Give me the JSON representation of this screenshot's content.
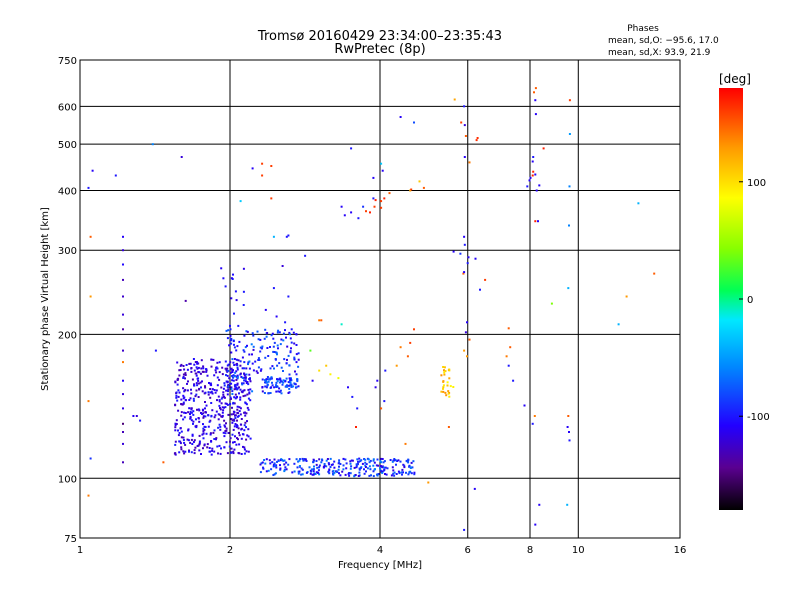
{
  "chart_data": {
    "type": "scatter",
    "title": "Tromsø 20160429 23:34:00–23:35:43",
    "subtitle": "RwPretec (8p)",
    "phases_title": "Phases",
    "phases_stats": [
      "mean, sd,O: −95.6, 17.0",
      "mean, sd,X:  93.9, 21.9"
    ],
    "xlabel": "Frequency [MHz]",
    "ylabel": "Stationary phase Virtual Height [km]",
    "x_scale": "log2",
    "y_scale": "log",
    "xlim": [
      1,
      16
    ],
    "ylim": [
      75,
      750
    ],
    "x_ticks": [
      1,
      2,
      4,
      6,
      8,
      10,
      16
    ],
    "y_ticks": [
      75,
      100,
      200,
      300,
      400,
      500,
      600,
      750
    ],
    "grid": true,
    "colorbar": {
      "label": "[deg]",
      "range": [
        -180,
        180
      ],
      "ticks": [
        100,
        0,
        -100
      ]
    },
    "points": [
      [
        1.04,
        405,
        -100
      ],
      [
        1.06,
        440,
        -110
      ],
      [
        1.05,
        320,
        150
      ],
      [
        1.05,
        240,
        130
      ],
      [
        1.04,
        145,
        140
      ],
      [
        1.05,
        110,
        -90
      ],
      [
        1.04,
        92,
        140
      ],
      [
        1.18,
        430,
        -100
      ],
      [
        1.22,
        320,
        -110
      ],
      [
        1.22,
        300,
        -120
      ],
      [
        1.22,
        280,
        -105
      ],
      [
        1.22,
        260,
        -130
      ],
      [
        1.22,
        240,
        -125
      ],
      [
        1.22,
        220,
        -120
      ],
      [
        1.22,
        205,
        -135
      ],
      [
        1.22,
        185,
        -125
      ],
      [
        1.22,
        175,
        140
      ],
      [
        1.22,
        160,
        -110
      ],
      [
        1.22,
        150,
        -120
      ],
      [
        1.22,
        140,
        -115
      ],
      [
        1.22,
        130,
        -150
      ],
      [
        1.22,
        125,
        -130
      ],
      [
        1.22,
        118,
        -120
      ],
      [
        1.22,
        108,
        -130
      ],
      [
        1.28,
        135,
        -110
      ],
      [
        1.3,
        135,
        -120
      ],
      [
        1.32,
        132,
        -100
      ],
      [
        1.4,
        500,
        -60
      ],
      [
        1.42,
        185,
        -100
      ],
      [
        1.47,
        108,
        150
      ],
      [
        1.6,
        470,
        -120
      ],
      [
        1.63,
        235,
        -135
      ],
      [
        1.7,
        168,
        -115
      ],
      [
        1.92,
        275,
        -110
      ],
      [
        1.94,
        262,
        -105
      ],
      [
        1.96,
        252,
        -100
      ],
      [
        2.1,
        380,
        -30
      ],
      [
        2.22,
        445,
        -110
      ],
      [
        2.32,
        455,
        160
      ],
      [
        2.42,
        450,
        160
      ],
      [
        2.32,
        430,
        160
      ],
      [
        2.42,
        385,
        160
      ],
      [
        2.45,
        320,
        -40
      ],
      [
        2.6,
        320,
        -100
      ],
      [
        2.62,
        322,
        -100
      ],
      [
        2.55,
        278,
        -120
      ],
      [
        2.62,
        240,
        -100
      ],
      [
        2.45,
        250,
        -100
      ],
      [
        2.36,
        225,
        -110
      ],
      [
        2.48,
        218,
        -110
      ],
      [
        2.58,
        212,
        -100
      ],
      [
        2.66,
        205,
        -100
      ],
      [
        2.72,
        200,
        -110
      ],
      [
        2.72,
        190,
        -105
      ],
      [
        2.72,
        175,
        -110
      ],
      [
        2.72,
        165,
        -100
      ],
      [
        2.83,
        292,
        -100
      ],
      [
        3.02,
        214,
        140
      ],
      [
        3.05,
        214,
        150
      ],
      [
        2.9,
        185,
        30
      ],
      [
        3.12,
        172,
        110
      ],
      [
        3.18,
        165,
        90
      ],
      [
        3.02,
        168,
        100
      ],
      [
        2.93,
        160,
        -110
      ],
      [
        3.3,
        162,
        80
      ],
      [
        3.35,
        210,
        -10
      ],
      [
        3.45,
        155,
        -110
      ],
      [
        3.52,
        148,
        -100
      ],
      [
        3.6,
        140,
        -100
      ],
      [
        3.58,
        128,
        170
      ],
      [
        3.5,
        490,
        -100
      ],
      [
        3.35,
        370,
        -110
      ],
      [
        3.4,
        355,
        -110
      ],
      [
        3.5,
        360,
        -110
      ],
      [
        3.62,
        350,
        -100
      ],
      [
        3.7,
        370,
        -90
      ],
      [
        3.75,
        362,
        160
      ],
      [
        3.82,
        360,
        170
      ],
      [
        3.9,
        370,
        160
      ],
      [
        4.02,
        368,
        160
      ],
      [
        3.92,
        382,
        170
      ],
      [
        4.02,
        380,
        160
      ],
      [
        4.08,
        385,
        170
      ],
      [
        3.88,
        385,
        -100
      ],
      [
        4.18,
        395,
        150
      ],
      [
        4.02,
        455,
        -30
      ],
      [
        4.05,
        440,
        -110
      ],
      [
        3.88,
        425,
        -110
      ],
      [
        4.4,
        570,
        -110
      ],
      [
        4.68,
        555,
        -80
      ],
      [
        4.6,
        400,
        120
      ],
      [
        4.62,
        402,
        160
      ],
      [
        4.8,
        418,
        110
      ],
      [
        4.9,
        405,
        150
      ],
      [
        4.4,
        188,
        140
      ],
      [
        4.55,
        180,
        150
      ],
      [
        4.6,
        192,
        160
      ],
      [
        4.68,
        205,
        160
      ],
      [
        4.32,
        172,
        130
      ],
      [
        4.08,
        145,
        -100
      ],
      [
        4.02,
        140,
        150
      ],
      [
        4.1,
        168,
        -100
      ],
      [
        3.95,
        160,
        -110
      ],
      [
        3.92,
        155,
        -115
      ],
      [
        4.5,
        118,
        140
      ],
      [
        5.0,
        98,
        130
      ],
      [
        5.65,
        620,
        125
      ],
      [
        5.82,
        555,
        160
      ],
      [
        5.9,
        600,
        -100
      ],
      [
        5.92,
        548,
        -120
      ],
      [
        5.95,
        520,
        150
      ],
      [
        6.05,
        458,
        140
      ],
      [
        6.25,
        510,
        165
      ],
      [
        6.28,
        515,
        165
      ],
      [
        5.92,
        470,
        -110
      ],
      [
        5.9,
        320,
        -110
      ],
      [
        5.92,
        308,
        -100
      ],
      [
        5.62,
        298,
        -110
      ],
      [
        5.8,
        295,
        -90
      ],
      [
        6.02,
        290,
        -110
      ],
      [
        6.22,
        288,
        -110
      ],
      [
        6.0,
        282,
        -100
      ],
      [
        5.88,
        268,
        150
      ],
      [
        5.9,
        270,
        -110
      ],
      [
        6.35,
        248,
        -100
      ],
      [
        6.5,
        260,
        160
      ],
      [
        5.98,
        212,
        -110
      ],
      [
        5.95,
        202,
        -120
      ],
      [
        6.05,
        195,
        150
      ],
      [
        5.9,
        185,
        130
      ],
      [
        5.98,
        180,
        130
      ],
      [
        6.2,
        95,
        -110
      ],
      [
        5.9,
        78,
        -100
      ],
      [
        5.5,
        128,
        150
      ],
      [
        7.25,
        206,
        150
      ],
      [
        7.3,
        188,
        150
      ],
      [
        7.18,
        180,
        140
      ],
      [
        7.4,
        160,
        -100
      ],
      [
        7.25,
        172,
        -100
      ],
      [
        7.8,
        142,
        -110
      ],
      [
        7.9,
        408,
        -100
      ],
      [
        7.98,
        420,
        -110
      ],
      [
        8.02,
        425,
        -110
      ],
      [
        8.1,
        430,
        170
      ],
      [
        8.12,
        438,
        170
      ],
      [
        8.2,
        432,
        -110
      ],
      [
        8.35,
        410,
        -110
      ],
      [
        8.25,
        400,
        -110
      ],
      [
        8.52,
        490,
        170
      ],
      [
        8.12,
        470,
        -100
      ],
      [
        8.1,
        460,
        -110
      ],
      [
        8.2,
        345,
        170
      ],
      [
        8.3,
        345,
        -110
      ],
      [
        8.22,
        655,
        150
      ],
      [
        8.15,
        642,
        150
      ],
      [
        8.2,
        618,
        -110
      ],
      [
        8.22,
        578,
        -110
      ],
      [
        8.18,
        135,
        140
      ],
      [
        8.1,
        130,
        -100
      ],
      [
        8.2,
        80,
        -110
      ],
      [
        8.35,
        88,
        -110
      ],
      [
        8.85,
        232,
        40
      ],
      [
        9.62,
        618,
        160
      ],
      [
        9.62,
        525,
        -50
      ],
      [
        9.6,
        408,
        -60
      ],
      [
        9.58,
        338,
        -60
      ],
      [
        9.55,
        250,
        -40
      ],
      [
        9.55,
        135,
        150
      ],
      [
        9.52,
        128,
        -110
      ],
      [
        9.58,
        125,
        -110
      ],
      [
        9.6,
        120,
        -100
      ],
      [
        9.5,
        88,
        -40
      ],
      [
        12.05,
        210,
        -40
      ],
      [
        12.5,
        240,
        130
      ],
      [
        13.2,
        376,
        -40
      ],
      [
        14.2,
        268,
        150
      ]
    ],
    "clusters": [
      {
        "f_range": [
          1.55,
          2.2
        ],
        "h_range": [
          112,
          178
        ],
        "phase_range": [
          -135,
          -95
        ],
        "count": 520
      },
      {
        "f_range": [
          1.95,
          2.75
        ],
        "h_range": [
          150,
          205
        ],
        "phase_range": [
          -120,
          -60
        ],
        "count": 180
      },
      {
        "f_range": [
          2.35,
          2.75
        ],
        "h_range": [
          155,
          162
        ],
        "phase_range": [
          -110,
          -60
        ],
        "count": 60
      },
      {
        "f_range": [
          2.3,
          4.7
        ],
        "h_range": [
          101,
          110
        ],
        "phase_range": [
          -120,
          -60
        ],
        "count": 280
      },
      {
        "f_range": [
          5.3,
          5.65
        ],
        "h_range": [
          148,
          172
        ],
        "phase_range": [
          85,
          135
        ],
        "count": 28
      },
      {
        "f_range": [
          2.0,
          2.15
        ],
        "h_range": [
          118,
          275
        ],
        "phase_range": [
          -120,
          -95
        ],
        "count": 40
      }
    ]
  }
}
